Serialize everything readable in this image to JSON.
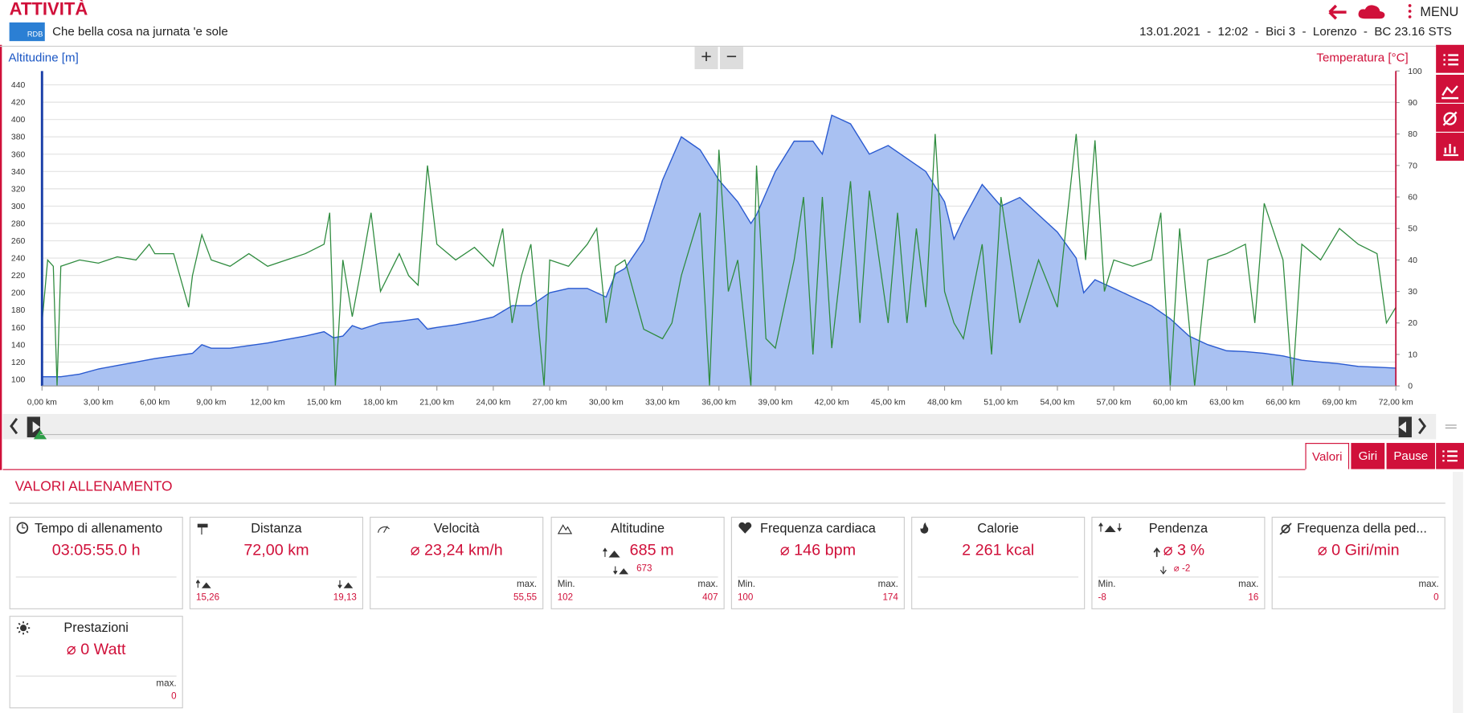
{
  "header": {
    "title": "ATTIVITÀ",
    "logo": "RDB",
    "subtitle": "Che bella cosa na jurnata 'e sole",
    "info": "13.01.2021  -  12:02  -  Bici 3  -  Lorenzo  -  BC 23.16 STS",
    "menu": "MENU"
  },
  "chart_data": {
    "type": "line",
    "ylabel": "Altitudine [m]",
    "y2label": "Temperatura [°C]",
    "zoom": [
      "+",
      "−"
    ],
    "xlim": [
      0,
      72
    ],
    "xticks": [
      {
        "value": 0,
        "label": "0,00 km"
      },
      {
        "value": 3,
        "label": "3,00 km"
      },
      {
        "value": 6,
        "label": "6,00 km"
      },
      {
        "value": 9,
        "label": "9,00 km"
      },
      {
        "value": 12,
        "label": "12,00 km"
      },
      {
        "value": 15,
        "label": "15,00 km"
      },
      {
        "value": 18,
        "label": "18,00 km"
      },
      {
        "value": 21,
        "label": "21,00 km"
      },
      {
        "value": 24,
        "label": "24,00 km"
      },
      {
        "value": 27,
        "label": "27,00 km"
      },
      {
        "value": 30,
        "label": "30,00 km"
      },
      {
        "value": 33,
        "label": "33,00 km"
      },
      {
        "value": 36,
        "label": "36,00 km"
      },
      {
        "value": 39,
        "label": "39,00 km"
      },
      {
        "value": 42,
        "label": "42,00 km"
      },
      {
        "value": 45,
        "label": "45,00 km"
      },
      {
        "value": 48,
        "label": "48,00 km"
      },
      {
        "value": 51,
        "label": "51,00 km"
      },
      {
        "value": 54,
        "label": "54,00 km"
      },
      {
        "value": 57,
        "label": "57,00 km"
      },
      {
        "value": 60,
        "label": "60,00 km"
      },
      {
        "value": 63,
        "label": "63,00 km"
      },
      {
        "value": 66,
        "label": "66,00 km"
      },
      {
        "value": 69,
        "label": "69,00 km"
      },
      {
        "value": 72,
        "label": "72,00 km"
      }
    ],
    "ylim": [
      92.4,
      456
    ],
    "yticks": [
      100,
      120,
      140,
      160,
      180,
      200,
      220,
      240,
      260,
      280,
      300,
      320,
      340,
      360,
      380,
      400,
      420,
      440
    ],
    "y2lim": [
      0,
      100
    ],
    "y2ticks": [
      0,
      10,
      20,
      30,
      40,
      50,
      60,
      70,
      80,
      90,
      100
    ],
    "grid": true,
    "series": [
      {
        "type": "area",
        "color": "#a9c1f2",
        "line_color": "#2a5ad0",
        "x": [
          0,
          1,
          2,
          3,
          4,
          5,
          6,
          7,
          8,
          8.5,
          9,
          10,
          11,
          12,
          13,
          14,
          15,
          15.5,
          16,
          16.5,
          17,
          18,
          19,
          20,
          20.5,
          21,
          22,
          23,
          24,
          25,
          26,
          27,
          28,
          29,
          30,
          30.5,
          31,
          32,
          33,
          34,
          35,
          36,
          37,
          37.7,
          38,
          39,
          40,
          41,
          41.5,
          42,
          43,
          44,
          45,
          46,
          47,
          48,
          48.5,
          49,
          50,
          51,
          52,
          53,
          54,
          55,
          55.4,
          56,
          57,
          58,
          59,
          60,
          61,
          62,
          63,
          64,
          65,
          66,
          67,
          68,
          69,
          70,
          71,
          72
        ],
        "values": [
          103,
          103,
          106,
          112,
          116,
          120,
          124,
          127,
          130,
          140,
          136,
          136,
          139,
          142,
          146,
          150,
          155,
          148,
          150,
          162,
          158,
          165,
          167,
          170,
          158,
          160,
          163,
          167,
          172,
          185,
          185,
          200,
          205,
          205,
          195,
          222,
          228,
          260,
          330,
          380,
          365,
          330,
          305,
          280,
          290,
          340,
          375,
          375,
          360,
          405,
          395,
          360,
          370,
          355,
          340,
          305,
          262,
          285,
          325,
          300,
          310,
          290,
          270,
          240,
          200,
          215,
          205,
          195,
          185,
          170,
          150,
          140,
          133,
          132,
          130,
          127,
          122,
          120,
          118,
          115,
          114,
          113
        ]
      },
      {
        "type": "line",
        "axis": "y2",
        "color": "#2e8b3e",
        "x": [
          0,
          0.3,
          0.6,
          0.8,
          1,
          2,
          3,
          4,
          5,
          5.7,
          6,
          7,
          7.8,
          8,
          8.5,
          9,
          10,
          11,
          12,
          13,
          14,
          15,
          15.3,
          15.6,
          16,
          16.5,
          17,
          17.5,
          18,
          19,
          19.5,
          20,
          20.5,
          21,
          22,
          23,
          24,
          24.5,
          25,
          25.5,
          26,
          26.7,
          27,
          28,
          29,
          29.5,
          30,
          30.5,
          31,
          32,
          33,
          33.5,
          34,
          35,
          35.5,
          36,
          36.5,
          37,
          37.7,
          38,
          38.5,
          39,
          40,
          40.5,
          41,
          41.5,
          42,
          43,
          43.5,
          44,
          45,
          45.5,
          46,
          46.5,
          47,
          47.5,
          48,
          48.5,
          49,
          50,
          50.5,
          51,
          52,
          53,
          54,
          55,
          55.5,
          56,
          56.5,
          57,
          58,
          59,
          59.5,
          60,
          60.5,
          61,
          61.3,
          62,
          63,
          64,
          64.5,
          65,
          66,
          66.5,
          67,
          68,
          69,
          70,
          71,
          71.5,
          72
        ],
        "values": [
          20,
          40,
          38,
          0,
          38,
          40,
          39,
          41,
          40,
          45,
          42,
          42,
          25,
          35,
          48,
          40,
          38,
          42,
          38,
          40,
          42,
          45,
          55,
          0,
          40,
          22,
          38,
          55,
          30,
          42,
          35,
          32,
          70,
          45,
          40,
          44,
          38,
          50,
          20,
          35,
          45,
          0,
          40,
          38,
          45,
          50,
          20,
          38,
          40,
          18,
          15,
          20,
          35,
          55,
          0,
          75,
          30,
          40,
          0,
          70,
          15,
          12,
          40,
          60,
          10,
          60,
          12,
          65,
          20,
          62,
          20,
          55,
          20,
          50,
          25,
          80,
          30,
          20,
          15,
          45,
          10,
          60,
          20,
          40,
          25,
          80,
          40,
          78,
          30,
          40,
          38,
          40,
          55,
          0,
          50,
          20,
          0,
          40,
          42,
          45,
          20,
          58,
          40,
          0,
          45,
          40,
          50,
          45,
          42,
          20,
          25
        ]
      }
    ]
  },
  "tabs": [
    "Valori",
    "Giri",
    "Pause"
  ],
  "section_title": "VALORI ALLENAMENTO",
  "cards": [
    {
      "title": "Tempo di allenamento",
      "value": "03:05:55.0 h"
    },
    {
      "title": "Distanza",
      "value": "72,00 km",
      "left_value": "15,26",
      "right_value": "19,13"
    },
    {
      "title": "Velocità",
      "value": "⌀ 23,24 km/h",
      "right_label": "max.",
      "right_value": "55,55"
    },
    {
      "title": "Altitudine",
      "value": "685 m",
      "sub": "673",
      "left_label": "Min.",
      "left_value": "102",
      "right_label": "max.",
      "right_value": "407"
    },
    {
      "title": "Frequenza cardiaca",
      "value": "⌀ 146 bpm",
      "left_label": "Min.",
      "left_value": "100",
      "right_label": "max.",
      "right_value": "174"
    },
    {
      "title": "Calorie",
      "value": "2 261 kcal"
    },
    {
      "title": "Pendenza",
      "value": "⌀ 3 %",
      "sub": "⌀  -2",
      "left_label": "Min.",
      "left_value": "-8",
      "right_label": "max.",
      "right_value": "16"
    },
    {
      "title": "Frequenza della ped...",
      "value": "⌀ 0 Giri/min",
      "right_label": "max.",
      "right_value": "0"
    },
    {
      "title": "Prestazioni",
      "value": "⌀ 0 Watt",
      "right_label": "max.",
      "right_value": "0"
    }
  ]
}
